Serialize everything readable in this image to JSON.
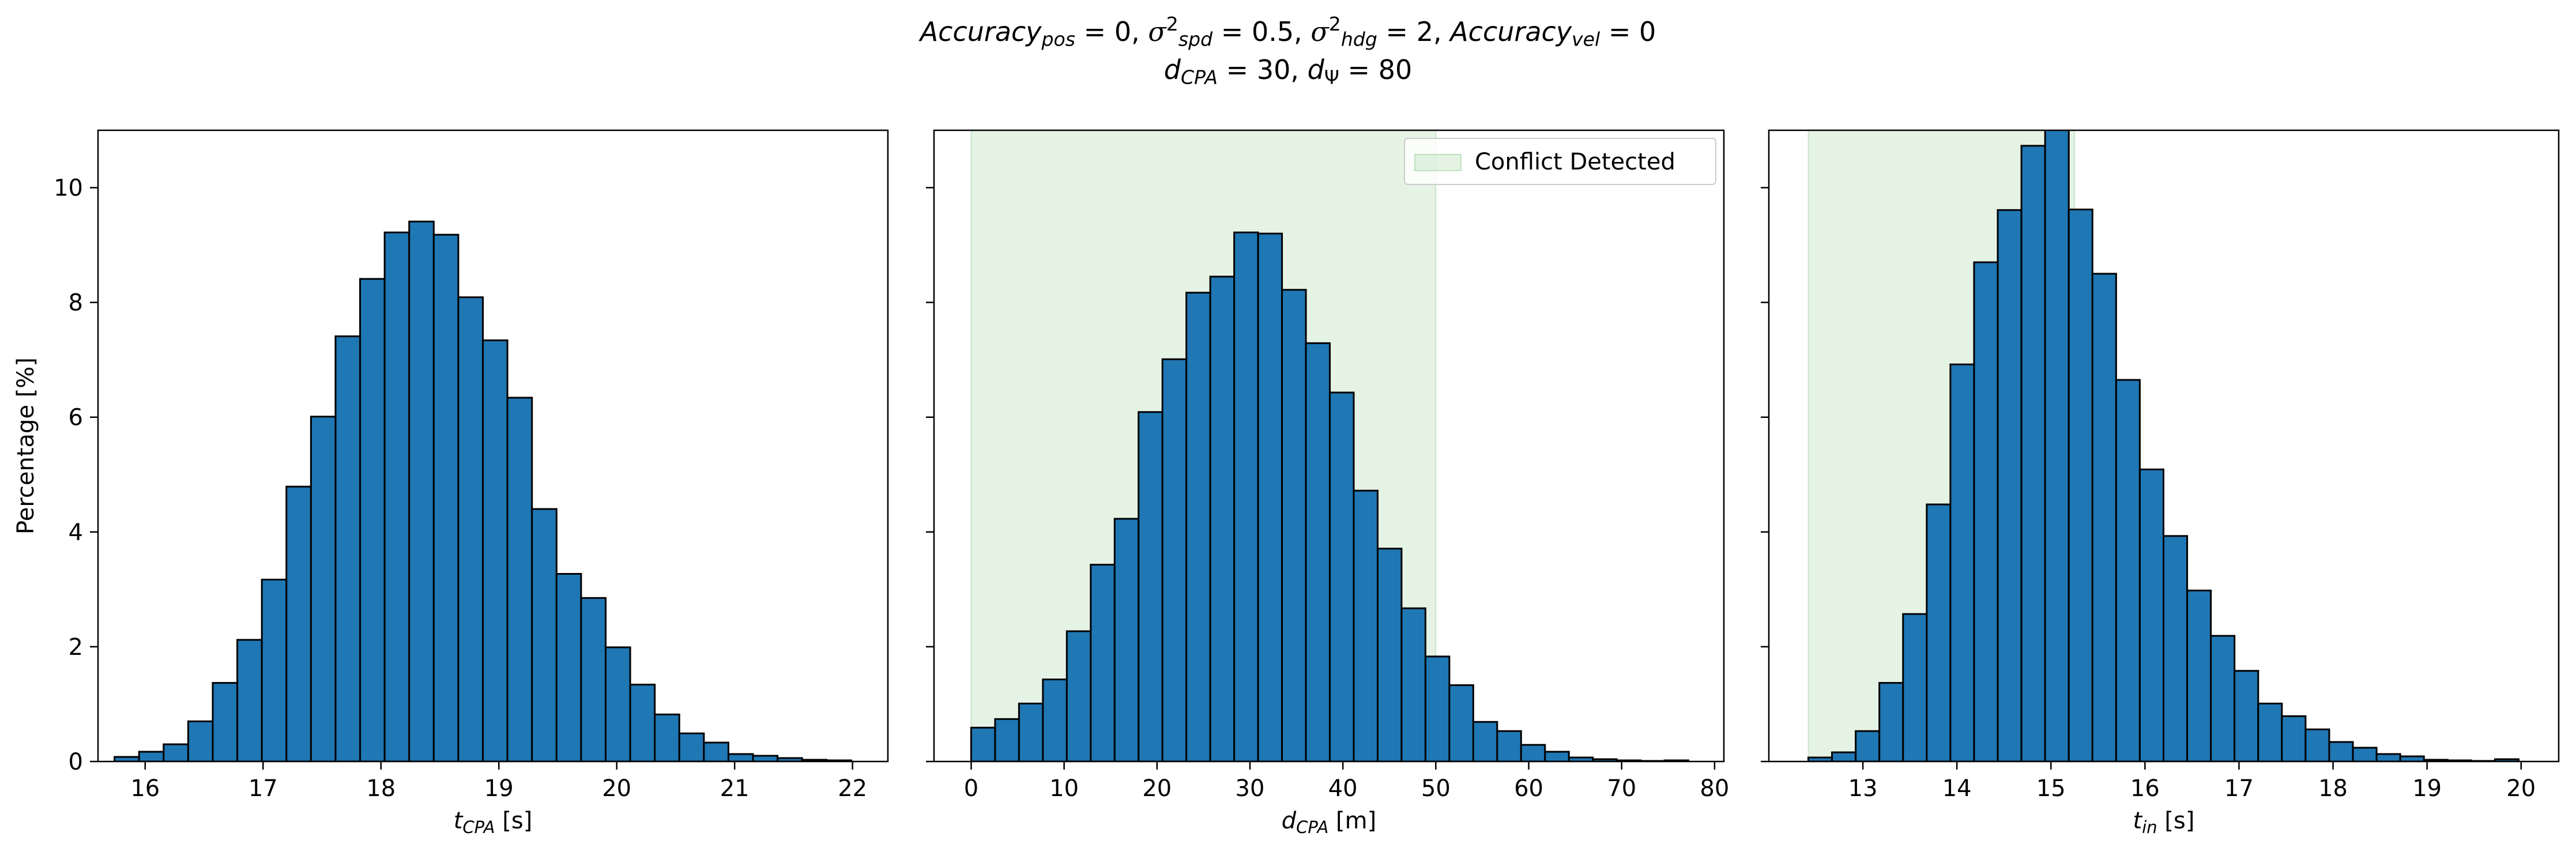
{
  "title": {
    "accuracy_word": "Accuracy",
    "pos_sub": "pos",
    "pos_value": "0",
    "spd_sub": "spd",
    "spd_value": "0.5",
    "hdg_sub": "hdg",
    "hdg_value": "2",
    "vel_sub": "vel",
    "vel_value": "0",
    "d_symbol": "d",
    "cpa_sub": "CPA",
    "cpa_value": "30",
    "psi_value": "80"
  },
  "chart_data": [
    {
      "type": "bar",
      "subtype": "histogram",
      "xlabel": "t_CPA [s]",
      "xlabel_main": "t",
      "xlabel_sub": "CPA",
      "xlabel_unit": " [s]",
      "ylabel": "Percentage [%]",
      "xlim": [
        15.6,
        22.3
      ],
      "ylim": [
        0,
        11
      ],
      "xticks": [
        16,
        17,
        18,
        19,
        20,
        21,
        22
      ],
      "yticks": [
        0,
        2,
        4,
        6,
        8,
        10
      ],
      "bin_start": 15.74,
      "bin_width": 0.2083,
      "values": [
        0.08,
        0.17,
        0.3,
        0.7,
        1.37,
        2.12,
        3.17,
        4.79,
        6.01,
        7.41,
        8.41,
        9.22,
        9.41,
        9.18,
        8.09,
        7.34,
        6.34,
        4.4,
        3.27,
        2.85,
        1.99,
        1.34,
        0.82,
        0.49,
        0.33,
        0.13,
        0.1,
        0.06,
        0.03,
        0.02
      ],
      "bar_color": "#1f77b4",
      "grid": false,
      "shaded_region": null,
      "legend": null
    },
    {
      "type": "bar",
      "subtype": "histogram",
      "xlabel": "d_CPA [m]",
      "xlabel_main": "d",
      "xlabel_sub": "CPA",
      "xlabel_unit": " [m]",
      "xlim": [
        -4,
        81
      ],
      "ylim": [
        0,
        11
      ],
      "xticks": [
        0,
        10,
        20,
        30,
        40,
        50,
        60,
        70,
        80
      ],
      "yticks": [
        0,
        2,
        4,
        6,
        8,
        10
      ],
      "bin_start": 0,
      "bin_width": 2.573,
      "values": [
        0.59,
        0.74,
        1.01,
        1.43,
        2.27,
        3.43,
        4.23,
        6.09,
        7.01,
        8.17,
        8.45,
        9.22,
        9.2,
        8.22,
        7.29,
        6.43,
        4.72,
        3.71,
        2.67,
        1.83,
        1.33,
        0.69,
        0.53,
        0.29,
        0.17,
        0.07,
        0.04,
        0.02,
        0.01,
        0.02
      ],
      "bar_color": "#1f77b4",
      "shaded_region": [
        0,
        50
      ],
      "shade_color": "#2ca02c",
      "legend": {
        "label": "Conflict Detected",
        "position": "upper right"
      },
      "grid": false
    },
    {
      "type": "bar",
      "subtype": "histogram",
      "xlabel": "t_in [s]",
      "xlabel_main": "t",
      "xlabel_sub": "in",
      "xlabel_unit": " [s]",
      "xlim": [
        12.0,
        20.4
      ],
      "ylim": [
        0,
        11
      ],
      "xticks": [
        13,
        14,
        15,
        16,
        17,
        18,
        19,
        20
      ],
      "yticks": [
        0,
        2,
        4,
        6,
        8,
        10
      ],
      "bin_start": 12.42,
      "bin_width": 0.2518,
      "values": [
        0.07,
        0.16,
        0.53,
        1.37,
        2.57,
        4.48,
        6.92,
        8.7,
        9.61,
        10.73,
        11.1,
        9.62,
        8.5,
        6.65,
        5.09,
        3.93,
        2.98,
        2.19,
        1.58,
        1.01,
        0.79,
        0.56,
        0.34,
        0.24,
        0.13,
        0.09,
        0.03,
        0.02,
        0.01,
        0.04
      ],
      "bar_color": "#1f77b4",
      "shaded_region": [
        12.42,
        15.25
      ],
      "shade_color": "#2ca02c",
      "legend": null,
      "grid": false
    }
  ]
}
